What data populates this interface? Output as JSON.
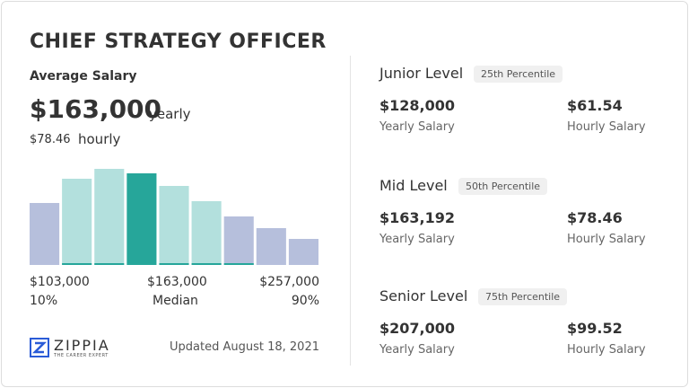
{
  "title": "CHIEF STRATEGY OFFICER",
  "average": {
    "label": "Average Salary",
    "yearly": "$163,000",
    "yearly_unit": "yearly",
    "hourly": "$78.46",
    "hourly_unit": "hourly"
  },
  "chart_data": {
    "type": "bar",
    "values": [
      69,
      96,
      107,
      102,
      88,
      71,
      54,
      41,
      29
    ],
    "colors": [
      "#b6bfdc",
      "#b3e0dd",
      "#b3e0dd",
      "#26a69a",
      "#b3e0dd",
      "#b3e0dd",
      "#b6bfdc",
      "#b6bfdc",
      "#b6bfdc"
    ],
    "underline": [
      false,
      true,
      true,
      false,
      true,
      true,
      true,
      false,
      false
    ],
    "underline_color": "#26a69a"
  },
  "scale": [
    {
      "salary": "$103,000",
      "percentile": "10%"
    },
    {
      "salary": "$163,000",
      "percentile": "Median"
    },
    {
      "salary": "$257,000",
      "percentile": "90%"
    }
  ],
  "footer": {
    "logo": "ZIPPIA",
    "tagline": "THE CAREER EXPERT",
    "updated": "Updated August 18, 2021"
  },
  "levels": [
    {
      "name": "Junior Level",
      "percentile": "25th Percentile",
      "yearly": "$128,000",
      "yearly_label": "Yearly Salary",
      "hourly": "$61.54",
      "hourly_label": "Hourly Salary"
    },
    {
      "name": "Mid Level",
      "percentile": "50th Percentile",
      "yearly": "$163,192",
      "yearly_label": "Yearly Salary",
      "hourly": "$78.46",
      "hourly_label": "Hourly Salary"
    },
    {
      "name": "Senior Level",
      "percentile": "75th Percentile",
      "yearly": "$207,000",
      "yearly_label": "Yearly Salary",
      "hourly": "$99.52",
      "hourly_label": "Hourly Salary"
    }
  ]
}
